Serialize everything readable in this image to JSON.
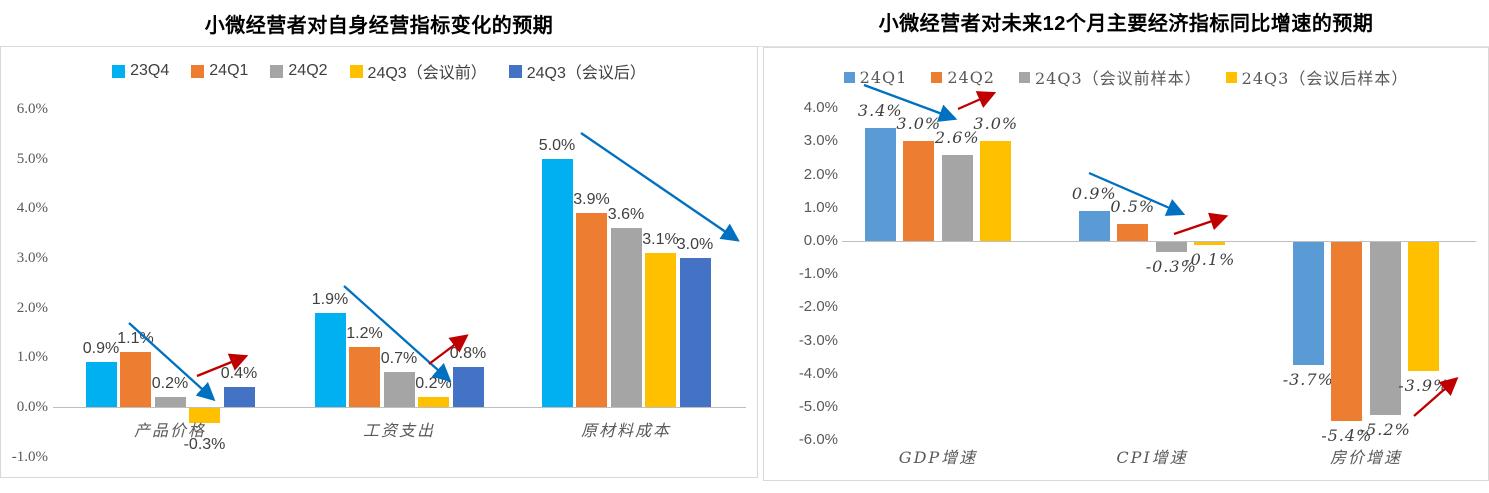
{
  "annotation_colors": {
    "blue": "#0070C0",
    "red": "#C00000"
  },
  "axis_color": "#BFBFBF",
  "chart_data": [
    {
      "type": "bar",
      "title": "小微经营者对自身经营指标变化的预期",
      "categories": [
        "产品价格",
        "工资支出",
        "原材料成本"
      ],
      "series": [
        {
          "name": "23Q4",
          "color": "#00B0F0",
          "values": [
            0.9,
            1.9,
            5.0
          ]
        },
        {
          "name": "24Q1",
          "color": "#ED7D31",
          "values": [
            1.1,
            1.2,
            3.9
          ]
        },
        {
          "name": "24Q2",
          "color": "#A5A5A5",
          "values": [
            0.2,
            0.7,
            3.6
          ]
        },
        {
          "name": "24Q3（会议前）",
          "color": "#FFC000",
          "values": [
            -0.3,
            0.2,
            3.1
          ]
        },
        {
          "name": "24Q3（会议后）",
          "color": "#4472C4",
          "values": [
            0.4,
            0.8,
            3.0
          ]
        }
      ],
      "ylabel": "",
      "ylim": [
        -1.0,
        6.0
      ],
      "ytick_step": 1.0,
      "ytick_format": "0.0%",
      "grid": false,
      "legend_position": "top",
      "data_labels": true,
      "trend_arrows": [
        {
          "group": "产品价格",
          "direction": "down",
          "color": "#0070C0"
        },
        {
          "group": "产品价格",
          "direction": "up",
          "color": "#C00000"
        },
        {
          "group": "工资支出",
          "direction": "down",
          "color": "#0070C0"
        },
        {
          "group": "工资支出",
          "direction": "up",
          "color": "#C00000"
        },
        {
          "group": "原材料成本",
          "direction": "down",
          "color": "#0070C0"
        }
      ]
    },
    {
      "type": "bar",
      "title": "小微经营者对未来12个月主要经济指标同比增速的预期",
      "categories": [
        "GDP增速",
        "CPI增速",
        "房价增速"
      ],
      "series": [
        {
          "name": "24Q1",
          "color": "#5B9BD5",
          "values": [
            3.4,
            0.9,
            -3.7
          ]
        },
        {
          "name": "24Q2",
          "color": "#ED7D31",
          "values": [
            3.0,
            0.5,
            -5.4
          ]
        },
        {
          "name": "24Q3（会议前样本）",
          "color": "#A5A5A5",
          "values": [
            2.6,
            -0.3,
            -5.2
          ]
        },
        {
          "name": "24Q3（会议后样本）",
          "color": "#FFC000",
          "values": [
            3.0,
            -0.1,
            -3.9
          ]
        }
      ],
      "ylabel": "",
      "ylim": [
        -6.0,
        4.0
      ],
      "ytick_step": 1.0,
      "ytick_format": "0.0%",
      "grid": false,
      "legend_position": "top",
      "data_labels": true,
      "trend_arrows": [
        {
          "group": "GDP增速",
          "direction": "down",
          "color": "#0070C0"
        },
        {
          "group": "GDP增速",
          "direction": "up",
          "color": "#C00000"
        },
        {
          "group": "CPI增速",
          "direction": "down",
          "color": "#0070C0"
        },
        {
          "group": "CPI增速",
          "direction": "up",
          "color": "#C00000"
        },
        {
          "group": "房价增速",
          "direction": "up",
          "color": "#C00000"
        }
      ]
    }
  ]
}
